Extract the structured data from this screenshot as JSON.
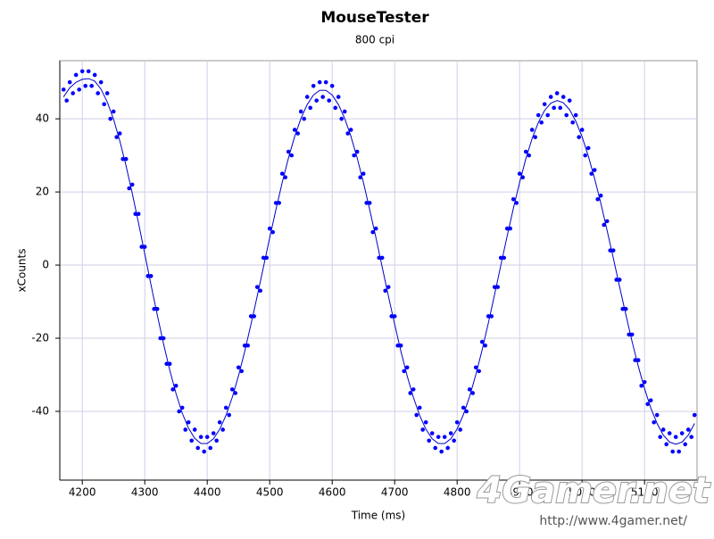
{
  "chart_data": {
    "type": "scatter",
    "title": "MouseTester",
    "subtitle": "800 cpi",
    "x_label": "Time (ms)",
    "y_label": "xCounts",
    "xlim": [
      4164,
      5184
    ],
    "ylim": [
      -58.8,
      55.9
    ],
    "xticks": [
      4200,
      4300,
      4400,
      4500,
      4600,
      4700,
      4800,
      4900,
      5000,
      5100
    ],
    "yticks": [
      -40,
      -20,
      0,
      20,
      40
    ],
    "grid": true,
    "series": [
      {
        "mode": "markers",
        "color": "#0000ff",
        "x": [
          4170,
          4175,
          4180,
          4185,
          4190,
          4195,
          4200,
          4205,
          4210,
          4215,
          4220,
          4225,
          4230,
          4235,
          4240,
          4245,
          4250,
          4255,
          4260,
          4265,
          4270,
          4275,
          4280,
          4285,
          4290,
          4295,
          4300,
          4305,
          4310,
          4315,
          4320,
          4325,
          4330,
          4335,
          4340,
          4345,
          4350,
          4355,
          4360,
          4365,
          4370,
          4375,
          4380,
          4385,
          4390,
          4395,
          4400,
          4405,
          4410,
          4415,
          4420,
          4425,
          4430,
          4435,
          4440,
          4445,
          4450,
          4455,
          4460,
          4465,
          4470,
          4475,
          4480,
          4485,
          4490,
          4495,
          4500,
          4505,
          4510,
          4515,
          4520,
          4525,
          4530,
          4535,
          4540,
          4545,
          4550,
          4555,
          4560,
          4565,
          4570,
          4575,
          4580,
          4585,
          4590,
          4595,
          4600,
          4605,
          4610,
          4615,
          4620,
          4625,
          4630,
          4635,
          4640,
          4645,
          4650,
          4655,
          4660,
          4665,
          4670,
          4675,
          4680,
          4685,
          4690,
          4695,
          4700,
          4705,
          4710,
          4715,
          4720,
          4725,
          4730,
          4735,
          4740,
          4745,
          4750,
          4755,
          4760,
          4765,
          4770,
          4775,
          4780,
          4785,
          4790,
          4795,
          4800,
          4805,
          4810,
          4815,
          4820,
          4825,
          4830,
          4835,
          4840,
          4845,
          4850,
          4855,
          4860,
          4865,
          4870,
          4875,
          4880,
          4885,
          4890,
          4895,
          4900,
          4905,
          4910,
          4915,
          4920,
          4925,
          4930,
          4935,
          4940,
          4945,
          4950,
          4955,
          4960,
          4965,
          4970,
          4975,
          4980,
          4985,
          4990,
          4995,
          5000,
          5005,
          5010,
          5015,
          5020,
          5025,
          5030,
          5035,
          5040,
          5045,
          5050,
          5055,
          5060,
          5065,
          5070,
          5075,
          5080,
          5085,
          5090,
          5095,
          5100,
          5105,
          5110,
          5115,
          5120,
          5125,
          5130,
          5135,
          5140,
          5145,
          5150,
          5155,
          5160,
          5165,
          5170,
          5175,
          5180
        ],
        "values": [
          48,
          45,
          50,
          47,
          52,
          48,
          53,
          49,
          53,
          49,
          52,
          47,
          50,
          44,
          47,
          40,
          42,
          35,
          36,
          29,
          29,
          21,
          22,
          14,
          14,
          5,
          5,
          -3,
          -3,
          -12,
          -12,
          -20,
          -20,
          -27,
          -27,
          -34,
          -33,
          -40,
          -39,
          -45,
          -43,
          -48,
          -45,
          -50,
          -47,
          -51,
          -47,
          -50,
          -46,
          -48,
          -43,
          -45,
          -39,
          -41,
          -34,
          -35,
          -28,
          -29,
          -22,
          -22,
          -14,
          -14,
          -6,
          -7,
          2,
          2,
          10,
          9,
          17,
          17,
          25,
          24,
          31,
          30,
          37,
          36,
          42,
          40,
          46,
          43,
          49,
          45,
          50,
          46,
          50,
          45,
          49,
          43,
          46,
          40,
          42,
          36,
          37,
          30,
          31,
          24,
          25,
          17,
          17,
          9,
          10,
          2,
          2,
          -7,
          -6,
          -14,
          -14,
          -22,
          -22,
          -29,
          -28,
          -35,
          -34,
          -41,
          -39,
          -45,
          -43,
          -48,
          -46,
          -50,
          -47,
          -51,
          -47,
          -50,
          -46,
          -48,
          -43,
          -45,
          -39,
          -40,
          -34,
          -35,
          -28,
          -29,
          -21,
          -22,
          -14,
          -14,
          -6,
          -6,
          2,
          2,
          10,
          10,
          18,
          17,
          25,
          24,
          31,
          30,
          37,
          35,
          41,
          39,
          44,
          41,
          46,
          43,
          47,
          43,
          46,
          41,
          45,
          39,
          41,
          35,
          37,
          30,
          32,
          25,
          26,
          18,
          19,
          11,
          12,
          4,
          4,
          -4,
          -4,
          -12,
          -12,
          -19,
          -19,
          -26,
          -26,
          -33,
          -32,
          -38,
          -37,
          -43,
          -41,
          -47,
          -45,
          -49,
          -46,
          -51,
          -47,
          -51,
          -46,
          -49,
          -45,
          -47,
          -41
        ]
      },
      {
        "mode": "line",
        "color": "#0000cc",
        "x": [
          4170,
          4180,
          4190,
          4200,
          4210,
          4220,
          4230,
          4240,
          4250,
          4260,
          4270,
          4280,
          4290,
          4300,
          4310,
          4320,
          4330,
          4340,
          4350,
          4360,
          4370,
          4380,
          4390,
          4400,
          4410,
          4420,
          4430,
          4440,
          4450,
          4460,
          4470,
          4480,
          4490,
          4500,
          4510,
          4520,
          4530,
          4540,
          4550,
          4560,
          4570,
          4580,
          4590,
          4600,
          4610,
          4620,
          4630,
          4640,
          4650,
          4660,
          4670,
          4680,
          4690,
          4700,
          4710,
          4720,
          4730,
          4740,
          4750,
          4760,
          4770,
          4780,
          4790,
          4800,
          4810,
          4820,
          4830,
          4840,
          4850,
          4860,
          4870,
          4880,
          4890,
          4900,
          4910,
          4920,
          4930,
          4940,
          4950,
          4960,
          4970,
          4980,
          4990,
          5000,
          5010,
          5020,
          5030,
          5040,
          5050,
          5060,
          5070,
          5080,
          5090,
          5100,
          5110,
          5120,
          5130,
          5140,
          5150,
          5160,
          5170,
          5180
        ],
        "values": [
          46.0,
          48.5,
          50.0,
          50.8,
          51.0,
          50.3,
          48.1,
          44.6,
          39.9,
          34.0,
          27.2,
          19.6,
          11.5,
          3.1,
          -5.4,
          -13.6,
          -21.5,
          -28.7,
          -35.1,
          -40.5,
          -44.6,
          -47.4,
          -48.8,
          -48.8,
          -47.5,
          -44.9,
          -41.1,
          -36.2,
          -30.3,
          -23.6,
          -16.2,
          -8.5,
          -0.5,
          7.5,
          15.2,
          22.6,
          29.3,
          35.2,
          40.1,
          43.9,
          46.5,
          47.8,
          47.8,
          46.5,
          43.9,
          40.1,
          35.2,
          29.3,
          22.6,
          15.2,
          7.5,
          -0.5,
          -8.5,
          -16.2,
          -23.6,
          -30.3,
          -36.2,
          -41.1,
          -44.9,
          -47.5,
          -48.8,
          -48.8,
          -47.5,
          -44.8,
          -40.9,
          -35.9,
          -29.9,
          -23.2,
          -15.8,
          -8.0,
          0.0,
          7.9,
          15.5,
          22.6,
          29.1,
          34.6,
          39.0,
          42.3,
          44.3,
          45.0,
          44.4,
          42.5,
          39.3,
          35.1,
          29.8,
          23.7,
          16.9,
          9.5,
          1.9,
          -5.9,
          -13.5,
          -20.9,
          -27.7,
          -33.8,
          -39.1,
          -43.3,
          -46.5,
          -48.4,
          -49.0,
          -48.4,
          -46.5,
          -43.3
        ]
      }
    ]
  },
  "watermark": {
    "logo": "4Gamer.net",
    "url": "http://www.4gamer.net/"
  }
}
